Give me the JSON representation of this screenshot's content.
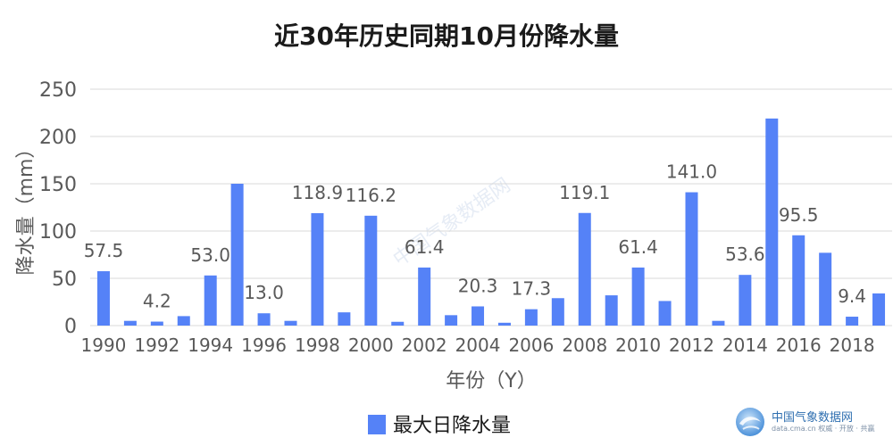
{
  "colors": {
    "bar": "#5582F7",
    "grid": "#d9d9d9",
    "text": "#595959",
    "title": "#1a1a1a"
  },
  "brand": {
    "name": "中国气象数据网",
    "sub": "data.cma.cn  权威 · 开放 · 共赢",
    "watermark": "中国气象数据网"
  },
  "chart_data": {
    "type": "bar",
    "title": "近30年历史同期10月份降水量",
    "xlabel": "年份（Y）",
    "ylabel": "降水量（mm）",
    "ylim": [
      0,
      250
    ],
    "yticks": [
      0,
      50,
      100,
      150,
      200,
      250
    ],
    "grid": true,
    "legend": "bottom-center",
    "categories": [
      "1990",
      "1991",
      "1992",
      "1993",
      "1994",
      "1995",
      "1996",
      "1997",
      "1998",
      "1999",
      "2000",
      "2001",
      "2002",
      "2003",
      "2004",
      "2005",
      "2006",
      "2007",
      "2008",
      "2009",
      "2010",
      "2011",
      "2012",
      "2013",
      "2014",
      "2015",
      "2016",
      "2017",
      "2018",
      "2019"
    ],
    "x_tick_labels": [
      "1990",
      "1992",
      "1994",
      "1996",
      "1998",
      "2000",
      "2002",
      "2004",
      "2006",
      "2008",
      "2010",
      "2012",
      "2014",
      "2016",
      "2018"
    ],
    "series": [
      {
        "name": "最大日降水量",
        "values": [
          57.5,
          5,
          4.2,
          10,
          53.0,
          150,
          13.0,
          5,
          118.9,
          14,
          116.2,
          4,
          61.4,
          11,
          20.3,
          3,
          17.3,
          29,
          119.1,
          32,
          61.4,
          26,
          141.0,
          5,
          53.6,
          219,
          95.5,
          77,
          9.4,
          34
        ],
        "data_labels": [
          "57.5",
          null,
          "4.2",
          null,
          "53.0",
          null,
          "13.0",
          null,
          "118.9",
          null,
          "116.2",
          null,
          "61.4",
          null,
          "20.3",
          null,
          "17.3",
          null,
          "119.1",
          null,
          "61.4",
          null,
          "141.0",
          null,
          "53.6",
          null,
          "95.5",
          null,
          "9.4",
          null
        ]
      }
    ]
  }
}
